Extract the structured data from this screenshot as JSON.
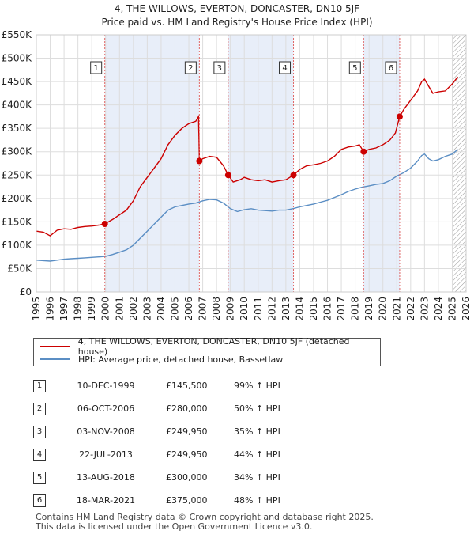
{
  "chart_data": {
    "type": "line",
    "title_line1": "4, THE WILLOWS, EVERTON, DONCASTER, DN10 5JF",
    "title_line2": "Price paid vs. HM Land Registry's House Price Index (HPI)",
    "xlim": [
      1995,
      2026
    ],
    "ylim": [
      0,
      550000
    ],
    "x_ticks": [
      "1995",
      "1996",
      "1997",
      "1998",
      "1999",
      "2000",
      "2001",
      "2002",
      "2003",
      "2004",
      "2005",
      "2006",
      "2007",
      "2008",
      "2009",
      "2010",
      "2011",
      "2012",
      "2013",
      "2014",
      "2015",
      "2016",
      "2017",
      "2018",
      "2019",
      "2020",
      "2021",
      "2022",
      "2023",
      "2024",
      "2025",
      "2026"
    ],
    "y_ticks": [
      {
        "value": 0,
        "label": "£0"
      },
      {
        "value": 50000,
        "label": "£50K"
      },
      {
        "value": 100000,
        "label": "£100K"
      },
      {
        "value": 150000,
        "label": "£150K"
      },
      {
        "value": 200000,
        "label": "£200K"
      },
      {
        "value": 250000,
        "label": "£250K"
      },
      {
        "value": 300000,
        "label": "£300K"
      },
      {
        "value": 350000,
        "label": "£350K"
      },
      {
        "value": 400000,
        "label": "£400K"
      },
      {
        "value": 450000,
        "label": "£450K"
      },
      {
        "value": 500000,
        "label": "£500K"
      },
      {
        "value": 550000,
        "label": "£550K"
      }
    ],
    "shaded_ranges": [
      [
        1999.94,
        2006.76
      ],
      [
        2008.84,
        2013.55
      ],
      [
        2018.61,
        2021.21
      ]
    ],
    "future_hatch_start": 2025.0,
    "series": [
      {
        "name": "4, THE WILLOWS, EVERTON, DONCASTER, DN10 5JF (detached house)",
        "color": "#cc0000",
        "points": [
          [
            1995.0,
            130000
          ],
          [
            1995.5,
            128000
          ],
          [
            1996.0,
            120000
          ],
          [
            1996.5,
            132000
          ],
          [
            1997.0,
            135000
          ],
          [
            1997.5,
            134000
          ],
          [
            1998.0,
            138000
          ],
          [
            1998.5,
            140000
          ],
          [
            1999.0,
            141000
          ],
          [
            1999.5,
            143000
          ],
          [
            1999.94,
            145500
          ],
          [
            2000.5,
            155000
          ],
          [
            2001.0,
            165000
          ],
          [
            2001.5,
            175000
          ],
          [
            2002.0,
            195000
          ],
          [
            2002.5,
            225000
          ],
          [
            2003.0,
            245000
          ],
          [
            2003.5,
            265000
          ],
          [
            2004.0,
            285000
          ],
          [
            2004.5,
            315000
          ],
          [
            2005.0,
            335000
          ],
          [
            2005.5,
            350000
          ],
          [
            2006.0,
            360000
          ],
          [
            2006.5,
            365000
          ],
          [
            2006.7,
            375000
          ],
          [
            2006.76,
            280000
          ],
          [
            2007.0,
            285000
          ],
          [
            2007.5,
            290000
          ],
          [
            2008.0,
            288000
          ],
          [
            2008.5,
            270000
          ],
          [
            2008.84,
            249950
          ],
          [
            2009.2,
            235000
          ],
          [
            2009.7,
            240000
          ],
          [
            2010.0,
            245000
          ],
          [
            2010.5,
            240000
          ],
          [
            2011.0,
            238000
          ],
          [
            2011.5,
            240000
          ],
          [
            2012.0,
            235000
          ],
          [
            2012.5,
            238000
          ],
          [
            2013.0,
            240000
          ],
          [
            2013.55,
            249950
          ],
          [
            2014.0,
            262000
          ],
          [
            2014.5,
            270000
          ],
          [
            2015.0,
            272000
          ],
          [
            2015.5,
            275000
          ],
          [
            2016.0,
            280000
          ],
          [
            2016.5,
            290000
          ],
          [
            2017.0,
            305000
          ],
          [
            2017.5,
            310000
          ],
          [
            2018.0,
            312000
          ],
          [
            2018.3,
            315000
          ],
          [
            2018.61,
            300000
          ],
          [
            2019.0,
            305000
          ],
          [
            2019.5,
            308000
          ],
          [
            2020.0,
            315000
          ],
          [
            2020.5,
            325000
          ],
          [
            2020.9,
            340000
          ],
          [
            2021.21,
            375000
          ],
          [
            2021.5,
            390000
          ],
          [
            2022.0,
            410000
          ],
          [
            2022.5,
            430000
          ],
          [
            2022.8,
            450000
          ],
          [
            2023.0,
            455000
          ],
          [
            2023.3,
            440000
          ],
          [
            2023.6,
            425000
          ],
          [
            2024.0,
            428000
          ],
          [
            2024.5,
            430000
          ],
          [
            2025.0,
            445000
          ],
          [
            2025.4,
            460000
          ]
        ]
      },
      {
        "name": "HPI: Average price, detached house, Bassetlaw",
        "color": "#5b8ec4",
        "points": [
          [
            1995.0,
            68000
          ],
          [
            1995.5,
            67000
          ],
          [
            1996.0,
            66000
          ],
          [
            1996.5,
            68000
          ],
          [
            1997.0,
            70000
          ],
          [
            1997.5,
            71000
          ],
          [
            1998.0,
            72000
          ],
          [
            1998.5,
            73000
          ],
          [
            1999.0,
            74000
          ],
          [
            1999.5,
            75000
          ],
          [
            2000.0,
            76000
          ],
          [
            2000.5,
            80000
          ],
          [
            2001.0,
            85000
          ],
          [
            2001.5,
            90000
          ],
          [
            2002.0,
            100000
          ],
          [
            2002.5,
            115000
          ],
          [
            2003.0,
            130000
          ],
          [
            2003.5,
            145000
          ],
          [
            2004.0,
            160000
          ],
          [
            2004.5,
            175000
          ],
          [
            2005.0,
            182000
          ],
          [
            2005.5,
            185000
          ],
          [
            2006.0,
            188000
          ],
          [
            2006.5,
            190000
          ],
          [
            2007.0,
            195000
          ],
          [
            2007.5,
            198000
          ],
          [
            2008.0,
            197000
          ],
          [
            2008.5,
            190000
          ],
          [
            2009.0,
            178000
          ],
          [
            2009.5,
            172000
          ],
          [
            2010.0,
            176000
          ],
          [
            2010.5,
            178000
          ],
          [
            2011.0,
            175000
          ],
          [
            2011.5,
            174000
          ],
          [
            2012.0,
            173000
          ],
          [
            2012.5,
            175000
          ],
          [
            2013.0,
            175000
          ],
          [
            2013.5,
            178000
          ],
          [
            2014.0,
            182000
          ],
          [
            2014.5,
            185000
          ],
          [
            2015.0,
            188000
          ],
          [
            2015.5,
            192000
          ],
          [
            2016.0,
            196000
          ],
          [
            2016.5,
            202000
          ],
          [
            2017.0,
            208000
          ],
          [
            2017.5,
            215000
          ],
          [
            2018.0,
            220000
          ],
          [
            2018.5,
            224000
          ],
          [
            2019.0,
            227000
          ],
          [
            2019.5,
            230000
          ],
          [
            2020.0,
            232000
          ],
          [
            2020.5,
            238000
          ],
          [
            2021.0,
            248000
          ],
          [
            2021.5,
            255000
          ],
          [
            2022.0,
            265000
          ],
          [
            2022.5,
            280000
          ],
          [
            2022.8,
            292000
          ],
          [
            2023.0,
            295000
          ],
          [
            2023.3,
            285000
          ],
          [
            2023.6,
            280000
          ],
          [
            2024.0,
            283000
          ],
          [
            2024.5,
            290000
          ],
          [
            2025.0,
            295000
          ],
          [
            2025.4,
            305000
          ]
        ]
      }
    ],
    "markers": [
      {
        "id": "1",
        "x": 1999.94,
        "y": 145500
      },
      {
        "id": "2",
        "x": 2006.76,
        "y": 280000
      },
      {
        "id": "3",
        "x": 2008.84,
        "y": 249950
      },
      {
        "id": "4",
        "x": 2013.55,
        "y": 249950
      },
      {
        "id": "5",
        "x": 2018.61,
        "y": 300000
      },
      {
        "id": "6",
        "x": 2021.21,
        "y": 375000
      }
    ]
  },
  "legend": {
    "property_label": "4, THE WILLOWS, EVERTON, DONCASTER, DN10 5JF (detached house)",
    "hpi_label": "HPI: Average price, detached house, Bassetlaw",
    "property_color": "#cc0000",
    "hpi_color": "#5b8ec4"
  },
  "sales": [
    {
      "num": "1",
      "date": "10-DEC-1999",
      "price": "£145,500",
      "delta": "99% ↑ HPI"
    },
    {
      "num": "2",
      "date": "06-OCT-2006",
      "price": "£280,000",
      "delta": "50% ↑ HPI"
    },
    {
      "num": "3",
      "date": "03-NOV-2008",
      "price": "£249,950",
      "delta": "35% ↑ HPI"
    },
    {
      "num": "4",
      "date": "22-JUL-2013",
      "price": "£249,950",
      "delta": "44% ↑ HPI"
    },
    {
      "num": "5",
      "date": "13-AUG-2018",
      "price": "£300,000",
      "delta": "34% ↑ HPI"
    },
    {
      "num": "6",
      "date": "18-MAR-2021",
      "price": "£375,000",
      "delta": "48% ↑ HPI"
    }
  ],
  "footer": {
    "line1": "Contains HM Land Registry data © Crown copyright and database right 2025.",
    "line2": "This data is licensed under the Open Government Licence v3.0."
  }
}
